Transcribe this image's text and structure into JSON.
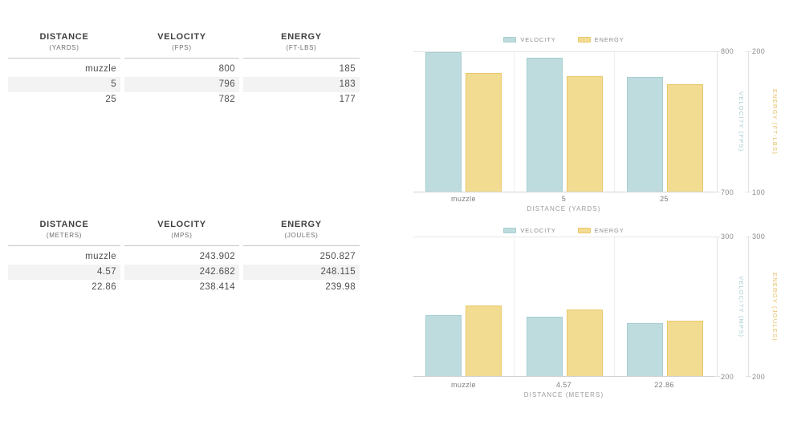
{
  "page": {
    "background": "#ffffff"
  },
  "colors": {
    "velocity_fill": "#bedcde",
    "velocity_border": "#a6ced2",
    "velocity_axis_text": "#a9cdd1",
    "energy_fill": "#f2dc92",
    "energy_border": "#e9c76a",
    "energy_axis_text": "#e6be62",
    "table_stripe": "#f3f3f3",
    "grid_line": "#efefef",
    "axis_line": "#e2e2e2"
  },
  "tables": [
    {
      "name": "imperial",
      "columns": [
        {
          "label": "DISTANCE",
          "unit": "(YARDS)"
        },
        {
          "label": "VELOCITY",
          "unit": "(FPS)"
        },
        {
          "label": "ENERGY",
          "unit": "(FT-LBS)"
        }
      ],
      "rows": [
        [
          "muzzle",
          "800",
          "185"
        ],
        [
          "5",
          "796",
          "183"
        ],
        [
          "25",
          "782",
          "177"
        ]
      ]
    },
    {
      "name": "metric",
      "columns": [
        {
          "label": "DISTANCE",
          "unit": "(METERS)"
        },
        {
          "label": "VELOCITY",
          "unit": "(MPS)"
        },
        {
          "label": "ENERGY",
          "unit": "(JOULES)"
        }
      ],
      "rows": [
        [
          "muzzle",
          "243.902",
          "250.827"
        ],
        [
          "4.57",
          "242.682",
          "248.115"
        ],
        [
          "22.86",
          "238.414",
          "239.98"
        ]
      ]
    }
  ],
  "chart_data": [
    {
      "type": "bar",
      "title": "",
      "categories": [
        "muzzle",
        "5",
        "25"
      ],
      "xlabel": "DISTANCE (YARDS)",
      "legend_position": "top",
      "series": [
        {
          "name": "VELOCITY",
          "values": [
            800,
            796,
            782
          ],
          "color": "#bedcde",
          "border_color": "#a6ced2",
          "axis": {
            "label": "VELOCITY (FPS)",
            "min": 700,
            "max": 800,
            "ticks": [
              800,
              700
            ],
            "title_color": "#a9cdd1"
          }
        },
        {
          "name": "ENERGY",
          "values": [
            185,
            183,
            177
          ],
          "color": "#f2dc92",
          "border_color": "#e9c76a",
          "axis": {
            "label": "ENERGY (FT-LBS)",
            "min": 100,
            "max": 200,
            "ticks": [
              200,
              100
            ],
            "title_color": "#e6be62"
          }
        }
      ]
    },
    {
      "type": "bar",
      "title": "",
      "categories": [
        "muzzle",
        "4.57",
        "22.86"
      ],
      "xlabel": "DISTANCE (METERS)",
      "legend_position": "top",
      "series": [
        {
          "name": "VELOCITY",
          "values": [
            243.902,
            242.682,
            238.414
          ],
          "color": "#bedcde",
          "border_color": "#a6ced2",
          "axis": {
            "label": "VELOCITY (MPS)",
            "min": 200,
            "max": 300,
            "ticks": [
              300,
              200
            ],
            "title_color": "#a9cdd1"
          }
        },
        {
          "name": "ENERGY",
          "values": [
            250.827,
            248.115,
            239.98
          ],
          "color": "#f2dc92",
          "border_color": "#e9c76a",
          "axis": {
            "label": "ENERGY (JOULES)",
            "min": 200,
            "max": 300,
            "ticks": [
              300,
              200
            ],
            "title_color": "#e6be62"
          }
        }
      ]
    }
  ]
}
